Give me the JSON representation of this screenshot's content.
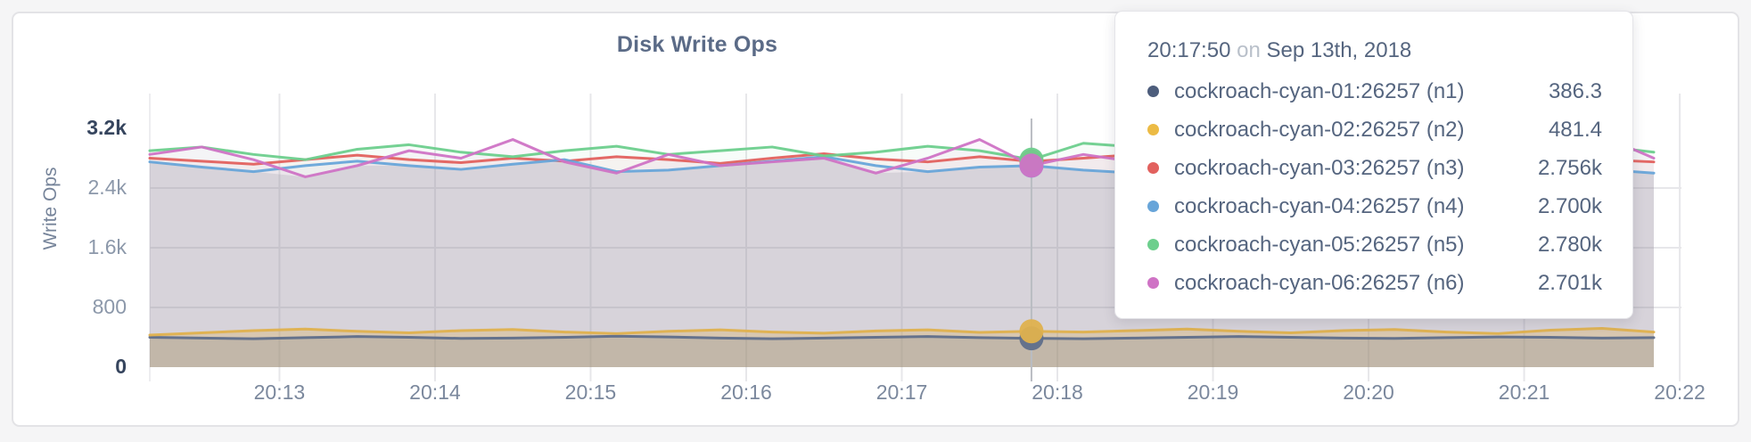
{
  "page": {
    "background_color": "#f5f5f6",
    "card_border_color": "#e3e3e6"
  },
  "chart_data": {
    "type": "line",
    "title": "Disk Write Ops",
    "xlabel": "",
    "ylabel": "Write Ops",
    "ylim": [
      0,
      3200
    ],
    "grid": true,
    "legend_position": "tooltip",
    "x_start_time": "20:12:10",
    "x_step_s": 20,
    "x_offsets_s": [
      0,
      20,
      40,
      60,
      80,
      100,
      120,
      140,
      160,
      180,
      200,
      220,
      240,
      260,
      280,
      300,
      320,
      340,
      360,
      380,
      400,
      420,
      440,
      460,
      480,
      500,
      520,
      540,
      560,
      580
    ],
    "x_ticks": [
      {
        "offset_s": 50,
        "label": "20:13"
      },
      {
        "offset_s": 110,
        "label": "20:14"
      },
      {
        "offset_s": 170,
        "label": "20:15"
      },
      {
        "offset_s": 230,
        "label": "20:16"
      },
      {
        "offset_s": 290,
        "label": "20:17"
      },
      {
        "offset_s": 350,
        "label": "20:18"
      },
      {
        "offset_s": 410,
        "label": "20:19"
      },
      {
        "offset_s": 470,
        "label": "20:20"
      },
      {
        "offset_s": 530,
        "label": "20:21"
      },
      {
        "offset_s": 590,
        "label": "20:22"
      }
    ],
    "y_ticks": [
      {
        "value": 0,
        "label": "0",
        "emphasis": true
      },
      {
        "value": 800,
        "label": "800",
        "emphasis": false
      },
      {
        "value": 1600,
        "label": "1.6k",
        "emphasis": false
      },
      {
        "value": 2400,
        "label": "2.4k",
        "emphasis": false
      },
      {
        "value": 3200,
        "label": "3.2k",
        "emphasis": true
      }
    ],
    "series": [
      {
        "name": "cockroach-cyan-01:26257 (n1)",
        "color": "#5f6e8a",
        "values": [
          400,
          390,
          380,
          395,
          410,
          400,
          385,
          390,
          400,
          415,
          405,
          390,
          380,
          390,
          400,
          410,
          395,
          386,
          380,
          390,
          400,
          410,
          400,
          390,
          385,
          395,
          405,
          400,
          390,
          395
        ]
      },
      {
        "name": "cockroach-cyan-02:26257 (n2)",
        "color": "#dfb14e",
        "values": [
          430,
          460,
          490,
          510,
          480,
          460,
          490,
          505,
          470,
          450,
          480,
          500,
          470,
          455,
          485,
          500,
          465,
          481,
          470,
          490,
          510,
          480,
          460,
          490,
          505,
          470,
          450,
          495,
          520,
          470
        ]
      },
      {
        "name": "cockroach-cyan-03:26257 (n3)",
        "color": "#e2615e",
        "values": [
          2800,
          2760,
          2720,
          2780,
          2840,
          2780,
          2740,
          2800,
          2760,
          2820,
          2780,
          2730,
          2800,
          2860,
          2790,
          2750,
          2820,
          2756,
          2800,
          2850,
          2780,
          2740,
          2800,
          2760,
          2820,
          2780,
          2800,
          2840,
          2780,
          2750
        ]
      },
      {
        "name": "cockroach-cyan-04:26257 (n4)",
        "color": "#68a5d9",
        "values": [
          2750,
          2680,
          2620,
          2700,
          2760,
          2700,
          2650,
          2720,
          2780,
          2620,
          2640,
          2700,
          2760,
          2820,
          2700,
          2620,
          2680,
          2700,
          2640,
          2600,
          2700,
          2760,
          2700,
          2650,
          2720,
          2760,
          2680,
          2700,
          2650,
          2600
        ]
      },
      {
        "name": "cockroach-cyan-05:26257 (n5)",
        "color": "#6dcf8d",
        "values": [
          2900,
          2950,
          2850,
          2780,
          2920,
          2980,
          2880,
          2820,
          2900,
          2960,
          2850,
          2900,
          2950,
          2830,
          2880,
          2960,
          2900,
          2780,
          3000,
          2950,
          2870,
          2900,
          2820,
          2950,
          2880,
          2930,
          2850,
          2900,
          2960,
          2880
        ]
      },
      {
        "name": "cockroach-cyan-06:26257 (n6)",
        "color": "#cf73c5",
        "values": [
          2850,
          2950,
          2780,
          2550,
          2700,
          2900,
          2800,
          3050,
          2750,
          2600,
          2850,
          2700,
          2750,
          2800,
          2600,
          2800,
          3050,
          2701,
          2850,
          2750,
          2900,
          2800,
          2700,
          2600,
          2750,
          2950,
          2800,
          2700,
          3100,
          2800
        ]
      }
    ]
  },
  "tooltip": {
    "time": "20:17:50",
    "conjunction": "on",
    "date": "Sep 13th, 2018",
    "hover_offset_s": 340,
    "rows": [
      {
        "label": "cockroach-cyan-01:26257 (n1)",
        "value": "386.3",
        "color": "#4d5d7c"
      },
      {
        "label": "cockroach-cyan-02:26257 (n2)",
        "value": "481.4",
        "color": "#ecbb45"
      },
      {
        "label": "cockroach-cyan-03:26257 (n3)",
        "value": "2.756k",
        "color": "#e2615e"
      },
      {
        "label": "cockroach-cyan-04:26257 (n4)",
        "value": "2.700k",
        "color": "#68a5d9"
      },
      {
        "label": "cockroach-cyan-05:26257 (n5)",
        "value": "2.780k",
        "color": "#6dcf8d"
      },
      {
        "label": "cockroach-cyan-06:26257 (n6)",
        "value": "2.701k",
        "color": "#cf73c5"
      }
    ]
  }
}
